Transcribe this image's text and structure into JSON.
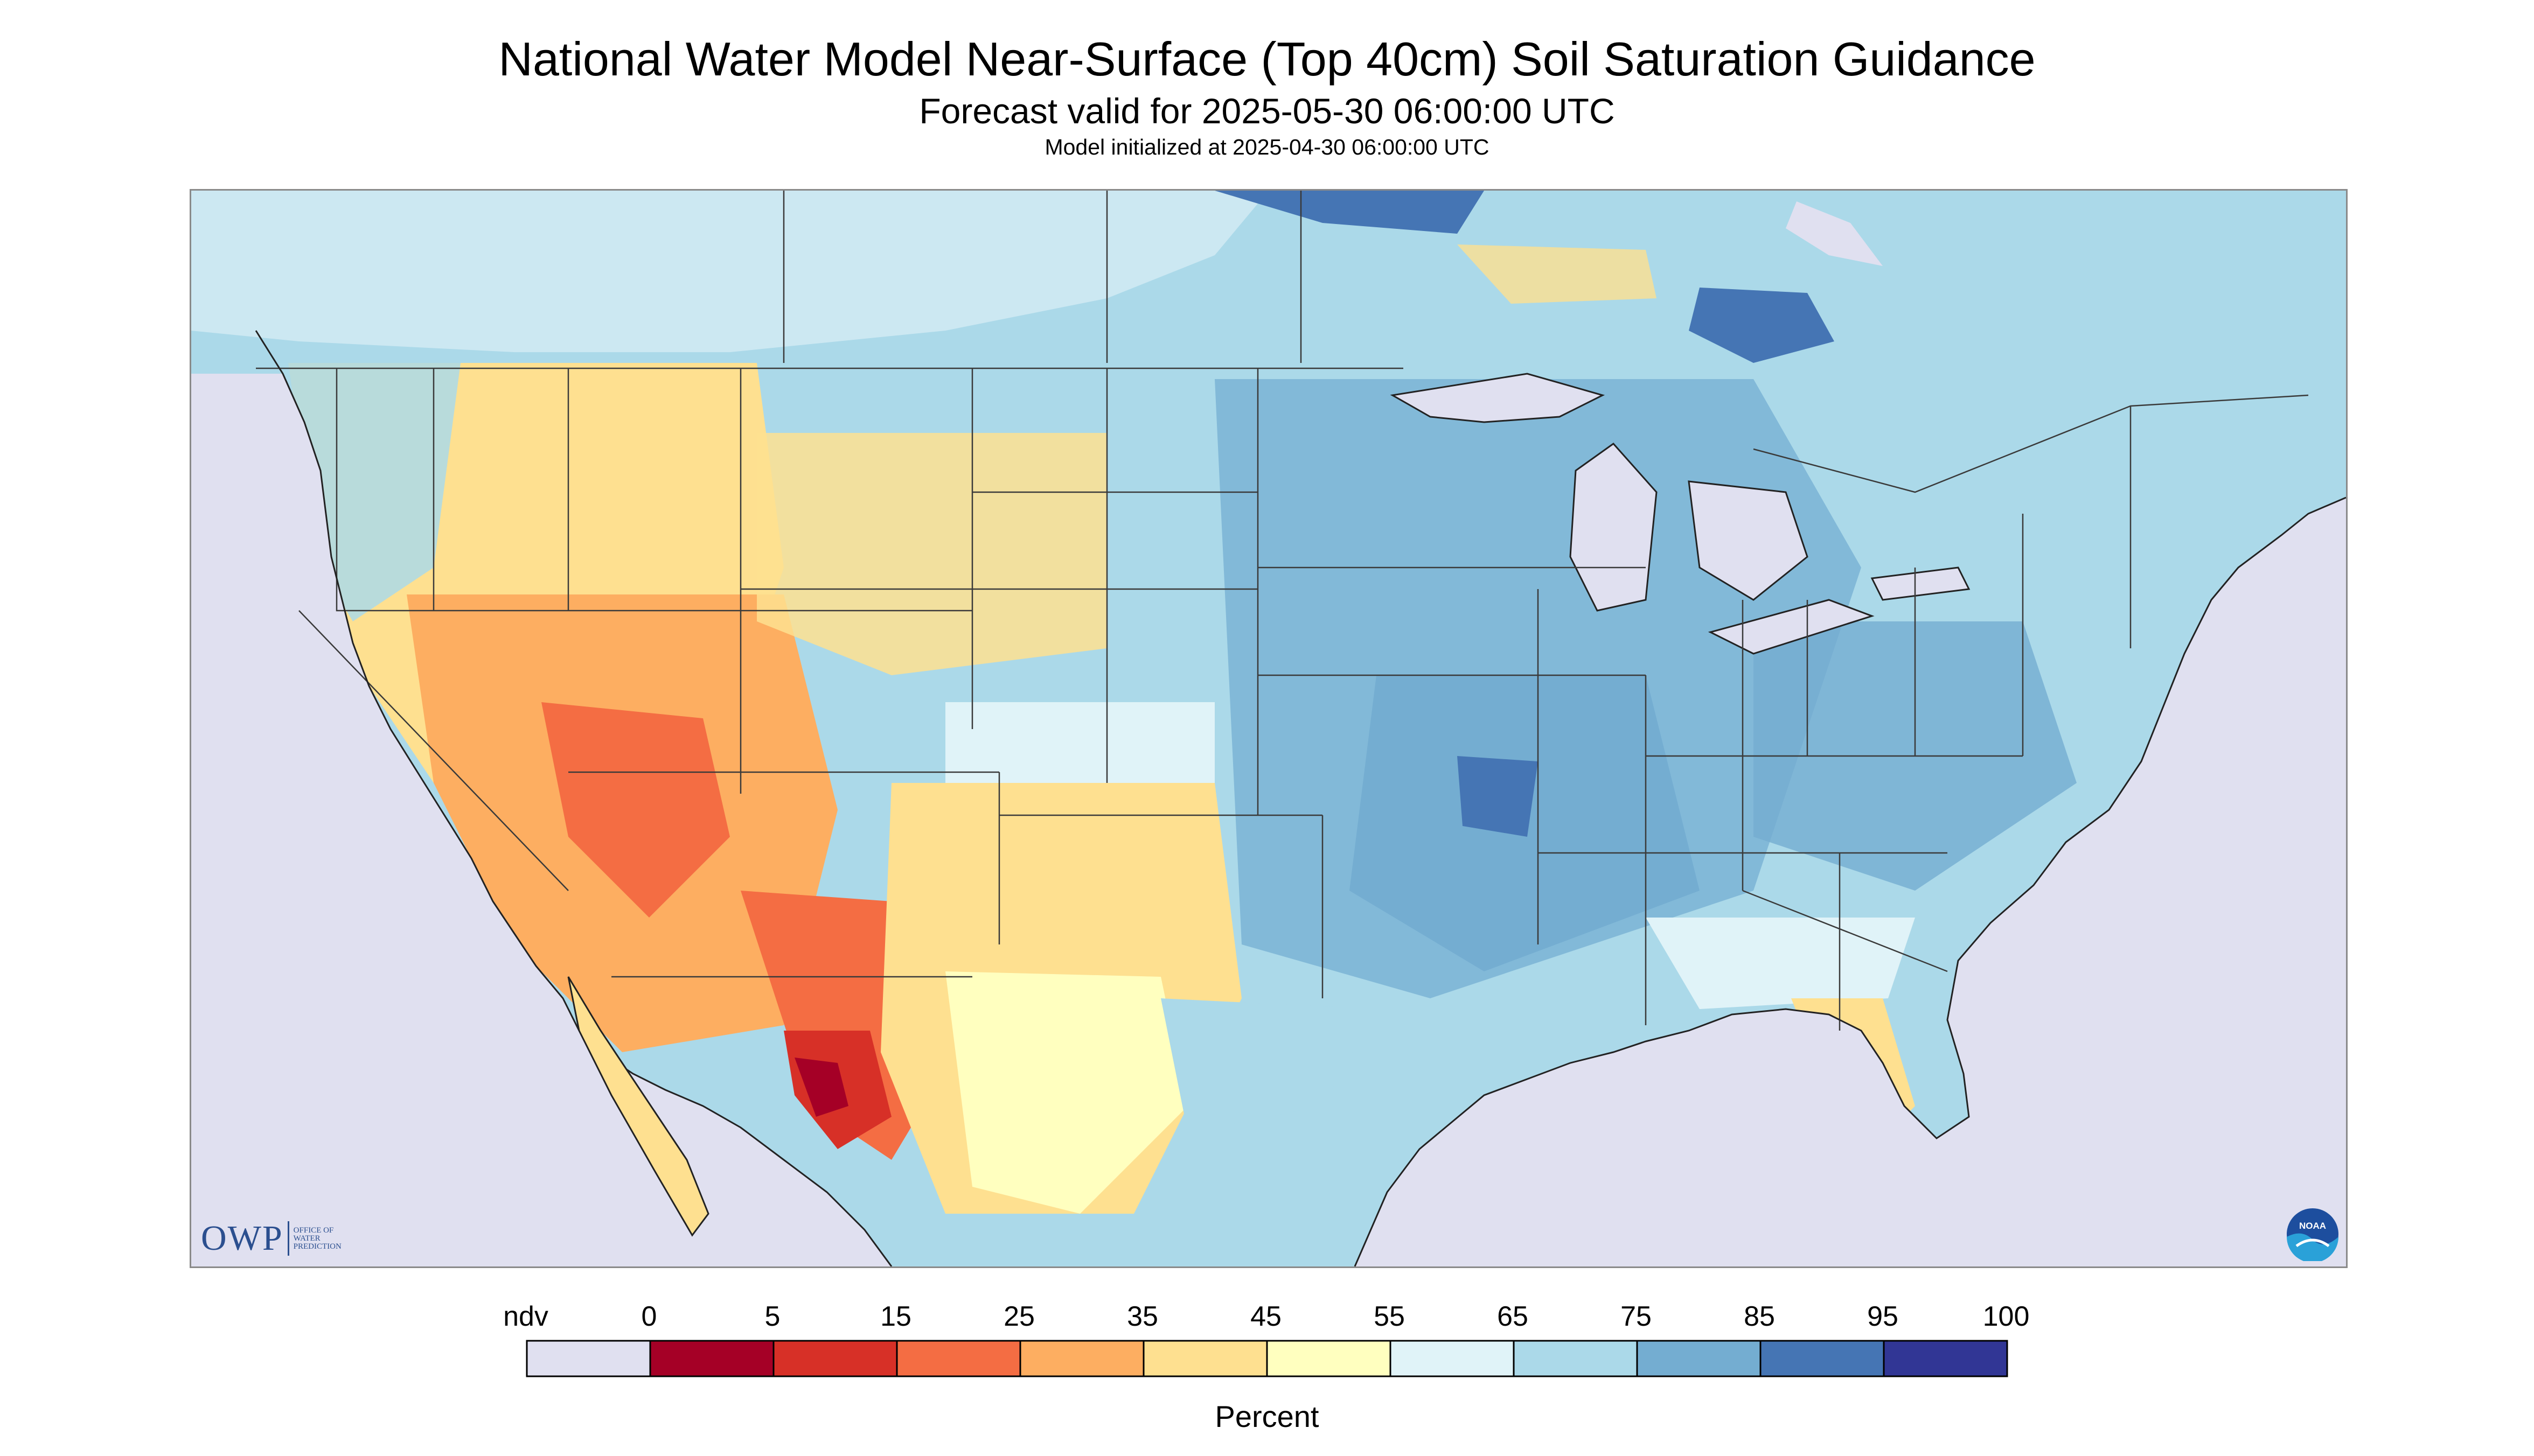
{
  "title": "National Water Model Near-Surface (Top 40cm) Soil Saturation Guidance",
  "subtitle": "Forecast valid for 2025-05-30 06:00:00 UTC",
  "model_init": "Model initialized at 2025-04-30 06:00:00 UTC",
  "logos": {
    "owp_word": "OWP",
    "owp_sub": "OFFICE OF\nWATER\nPREDICTION",
    "noaa": "NOAA"
  },
  "legend": {
    "title": "Percent",
    "ndv_label": "ndv",
    "tick_labels": [
      "0",
      "5",
      "15",
      "25",
      "35",
      "45",
      "55",
      "65",
      "75",
      "85",
      "95",
      "100"
    ],
    "colors": [
      "#e0e0f0",
      "#a50026",
      "#d73027",
      "#f46d43",
      "#fdae61",
      "#fee090",
      "#ffffbf",
      "#e0f3f8",
      "#abd9e9",
      "#74add1",
      "#4575b4",
      "#313695"
    ]
  },
  "map_colors": {
    "water": "#e0e0f0",
    "dry_extreme": "#a50026",
    "very_dry": "#d73027",
    "dry": "#f46d43",
    "moderately_dry": "#fdae61",
    "slightly_dry": "#fee090",
    "neutral": "#ffffbf",
    "slightly_wet": "#e0f3f8",
    "moist": "#abd9e9",
    "wet": "#74add1",
    "very_wet": "#4575b4",
    "saturated": "#313695",
    "borders": "#3a3a3a"
  }
}
